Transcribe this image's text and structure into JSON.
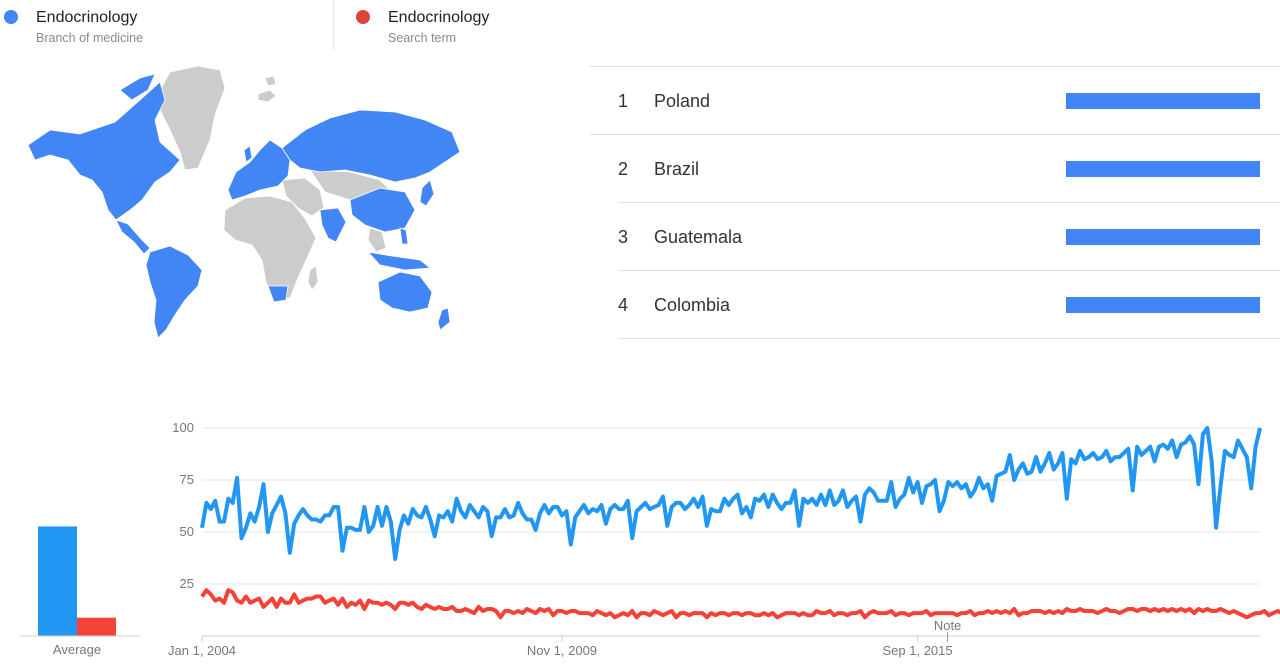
{
  "legend": [
    {
      "name": "Endocrinology",
      "subtitle": "Branch of medicine",
      "color": "#4285f4"
    },
    {
      "name": "Endocrinology",
      "subtitle": "Search term",
      "color": "#db4437"
    }
  ],
  "map": {
    "highlight_color": "#4285f4",
    "nodata_color": "#cccccc"
  },
  "ranking": [
    {
      "rank": "1",
      "country": "Poland",
      "value": 100
    },
    {
      "rank": "2",
      "country": "Brazil",
      "value": 100
    },
    {
      "rank": "3",
      "country": "Guatemala",
      "value": 100
    },
    {
      "rank": "4",
      "country": "Colombia",
      "value": 100
    }
  ],
  "average": {
    "label": "Average",
    "values": [
      66,
      11
    ],
    "colors": [
      "#2196f3",
      "#f44336"
    ]
  },
  "chart_data": {
    "type": "line",
    "x_ticks": [
      "Jan 1, 2004",
      "Nov 1, 2009",
      "Sep 1, 2015"
    ],
    "y_ticks": [
      25,
      50,
      75,
      100
    ],
    "ylim": [
      0,
      100
    ],
    "grid": true,
    "annotation": "Note",
    "series": [
      {
        "color": "#2196f3",
        "values": [
          52,
          64,
          61,
          65,
          55,
          55,
          66,
          64,
          76,
          47,
          52,
          59,
          55,
          62,
          73,
          50,
          59,
          63,
          67,
          59,
          40,
          54,
          58,
          61,
          58,
          56,
          56,
          55,
          58,
          58,
          62,
          62,
          41,
          52,
          52,
          51,
          51,
          62,
          50,
          53,
          62,
          53,
          62,
          55,
          37,
          51,
          58,
          54,
          61,
          58,
          57,
          62,
          56,
          48,
          58,
          57,
          60,
          55,
          66,
          60,
          57,
          63,
          60,
          57,
          62,
          60,
          48,
          57,
          57,
          61,
          57,
          58,
          64,
          59,
          56,
          56,
          51,
          59,
          63,
          59,
          62,
          62,
          58,
          60,
          44,
          57,
          60,
          63,
          59,
          61,
          60,
          63,
          54,
          61,
          63,
          61,
          61,
          65,
          47,
          60,
          62,
          64,
          61,
          62,
          63,
          67,
          53,
          62,
          64,
          64,
          61,
          63,
          66,
          62,
          67,
          53,
          61,
          60,
          60,
          66,
          63,
          66,
          68,
          59,
          62,
          57,
          66,
          65,
          68,
          62,
          68,
          64,
          61,
          64,
          64,
          70,
          53,
          66,
          64,
          66,
          63,
          68,
          63,
          70,
          63,
          65,
          70,
          62,
          65,
          67,
          55,
          68,
          71,
          69,
          65,
          65,
          65,
          74,
          62,
          66,
          68,
          76,
          69,
          74,
          64,
          72,
          73,
          75,
          60,
          65,
          74,
          72,
          74,
          71,
          73,
          67,
          70,
          76,
          71,
          73,
          65,
          77,
          78,
          79,
          87,
          75,
          80,
          83,
          78,
          79,
          86,
          79,
          83,
          88,
          80,
          83,
          88,
          66,
          85,
          83,
          89,
          85,
          86,
          88,
          85,
          86,
          89,
          84,
          86,
          86,
          88,
          90,
          70,
          91,
          87,
          89,
          91,
          84,
          91,
          92,
          90,
          94,
          86,
          92,
          93,
          96,
          92,
          73,
          97,
          100,
          84,
          52,
          72,
          89,
          87,
          86,
          94,
          90,
          86,
          71,
          91,
          100
        ]
      },
      {
        "color": "#f44336",
        "values": [
          19,
          22,
          20,
          17,
          18,
          16,
          22,
          21,
          17,
          16,
          19,
          16,
          17,
          18,
          14,
          16,
          18,
          14,
          18,
          16,
          16,
          20,
          16,
          17,
          18,
          18,
          19,
          19,
          16,
          17,
          18,
          15,
          18,
          14,
          16,
          15,
          17,
          13,
          17,
          16,
          16,
          15,
          16,
          15,
          13,
          16,
          16,
          15,
          16,
          14,
          13,
          15,
          14,
          13,
          14,
          13,
          13,
          14,
          12,
          12,
          13,
          12,
          11,
          14,
          12,
          13,
          13,
          12,
          9,
          12,
          12,
          11,
          12,
          11,
          13,
          12,
          11,
          13,
          12,
          13,
          10,
          12,
          12,
          11,
          12,
          12,
          11,
          11,
          11,
          10,
          12,
          11,
          10,
          11,
          9,
          10,
          11,
          10,
          12,
          9,
          11,
          11,
          10,
          12,
          11,
          10,
          11,
          12,
          9,
          11,
          11,
          10,
          11,
          11,
          11,
          9,
          11,
          10,
          11,
          11,
          10,
          11,
          11,
          10,
          11,
          11,
          10,
          10,
          11,
          10,
          11,
          9,
          10,
          11,
          11,
          11,
          10,
          11,
          10,
          10,
          12,
          11,
          11,
          12,
          10,
          11,
          11,
          10,
          11,
          11,
          12,
          9,
          11,
          12,
          11,
          11,
          11,
          12,
          10,
          11,
          11,
          10,
          11,
          11,
          11,
          12,
          10,
          11,
          11,
          11,
          11,
          11,
          10,
          11,
          11,
          12,
          10,
          11,
          11,
          12,
          11,
          12,
          11,
          12,
          11,
          13,
          10,
          11,
          11,
          12,
          12,
          12,
          11,
          12,
          11,
          12,
          11,
          13,
          12,
          12,
          13,
          12,
          12,
          12,
          11,
          12,
          13,
          12,
          12,
          11,
          12,
          13,
          13,
          12,
          13,
          13,
          12,
          13,
          12,
          13,
          12,
          13,
          12,
          13,
          12,
          13,
          11,
          13,
          12,
          13,
          12,
          12,
          13,
          12,
          11,
          12,
          11,
          10,
          9,
          10,
          11,
          11,
          12,
          10,
          11,
          12,
          11,
          13
        ]
      }
    ]
  }
}
